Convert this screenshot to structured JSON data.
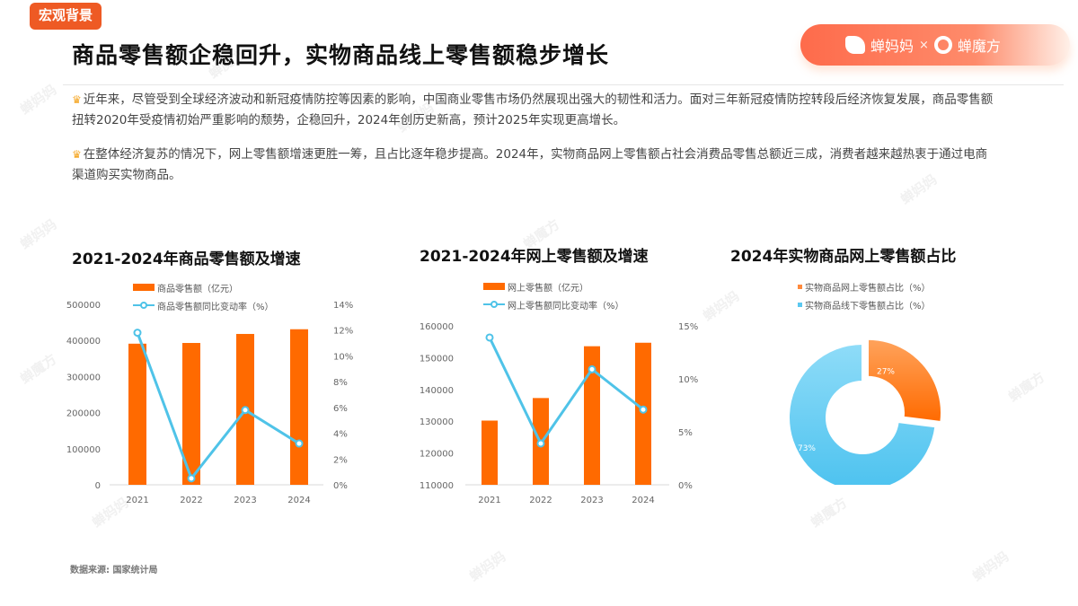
{
  "header": {
    "section_tag": "宏观背景",
    "title": "商品零售额企稳回升，实物商品线上零售额稳步增长",
    "brand": {
      "left": "蝉妈妈",
      "separator": "×",
      "right": "蝉魔方"
    }
  },
  "paragraphs": [
    {
      "icon": "crown-icon",
      "text": "近年来，尽管受到全球经济波动和新冠疫情防控等因素的影响，中国商业零售市场仍然展现出强大的韧性和活力。面对三年新冠疫情防控转段后经济恢复发展，商品零售额扭转2020年受疫情初始严重影响的颓势，企稳回升，2024年创历史新高，预计2025年实现更高增长。"
    },
    {
      "icon": "crown-icon",
      "text": "在整体经济复苏的情况下，网上零售额增速更胜一筹，且占比逐年稳步提高。2024年，实物商品网上零售额占社会消费品零售总额近三成，消费者越来越热衷于通过电商渠道购买实物商品。"
    }
  ],
  "footer": {
    "source": "数据来源: 国家统计局"
  },
  "colors": {
    "accent": "#ee5a24",
    "bar": "#ff6a00",
    "line": "#4fc3e8",
    "online": "#ff8a3d",
    "offline": "#5bc8f0"
  },
  "chart_data": [
    {
      "type": "bar",
      "title": "2021-2024年商品零售额及增速",
      "categories": [
        "2021",
        "2022",
        "2023",
        "2024"
      ],
      "series": [
        {
          "name": "商品零售额（亿元）",
          "type": "bar",
          "axis": "left",
          "values": [
            391000,
            393000,
            418000,
            431000
          ]
        },
        {
          "name": "商品零售额同比变动率（%）",
          "type": "line",
          "axis": "right",
          "values": [
            11.8,
            0.5,
            5.8,
            3.2
          ]
        }
      ],
      "left_axis": {
        "ticks": [
          "0",
          "100000",
          "200000",
          "300000",
          "400000",
          "500000"
        ],
        "ylim": [
          0,
          500000
        ]
      },
      "right_axis": {
        "ticks": [
          "0%",
          "2%",
          "4%",
          "6%",
          "8%",
          "10%",
          "12%",
          "14%"
        ],
        "ylim": [
          0,
          14
        ]
      },
      "xlabel": "",
      "ylabel": ""
    },
    {
      "type": "bar",
      "title": "2021-2024年网上零售额及增速",
      "categories": [
        "2021",
        "2022",
        "2023",
        "2024"
      ],
      "series": [
        {
          "name": "网上零售额（亿元）",
          "type": "bar",
          "axis": "left",
          "values": [
            130200,
            137300,
            153600,
            154700
          ]
        },
        {
          "name": "网上零售额同比变动率（%）",
          "type": "line",
          "axis": "right",
          "values": [
            13.9,
            3.9,
            10.9,
            7.1
          ]
        }
      ],
      "left_axis": {
        "ticks": [
          "110000",
          "120000",
          "130000",
          "140000",
          "150000",
          "160000"
        ],
        "ylim": [
          110000,
          160000
        ]
      },
      "right_axis": {
        "ticks": [
          "0%",
          "5%",
          "10%",
          "15%"
        ],
        "ylim": [
          0,
          15
        ]
      },
      "xlabel": "",
      "ylabel": ""
    },
    {
      "type": "pie",
      "title": "2024年实物商品网上零售额占比",
      "labels": [
        "实物商品网上零售额占比（%）",
        "实物商品线下零售额占比（%）"
      ],
      "values": [
        27,
        73
      ],
      "display_labels": [
        "27%",
        "73%"
      ]
    }
  ]
}
